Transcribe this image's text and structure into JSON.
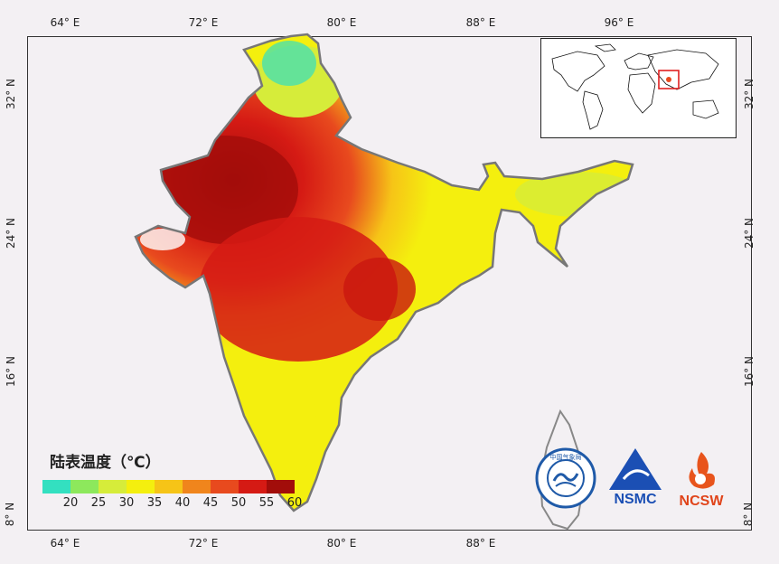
{
  "lon_ticks": [
    "64° E",
    "72° E",
    "80° E",
    "88° E",
    "96° E"
  ],
  "lat_ticks": [
    "32° N",
    "24° N",
    "16° N",
    "8° N"
  ],
  "legend": {
    "title": "陆表温度（℃）",
    "colors": [
      "#33e0c0",
      "#8de85c",
      "#d6ec3a",
      "#f4ef0e",
      "#f6c417",
      "#f0851c",
      "#e84a1e",
      "#d51a14",
      "#a20d0a"
    ],
    "labels": [
      "20",
      "25",
      "30",
      "35",
      "40",
      "45",
      "50",
      "55",
      "60"
    ]
  },
  "logos": {
    "cma_text": "中国气象局",
    "nsmc": "NSMC",
    "ncsw": "NCSW"
  },
  "inset": {
    "highlight_color": "#e02020"
  }
}
